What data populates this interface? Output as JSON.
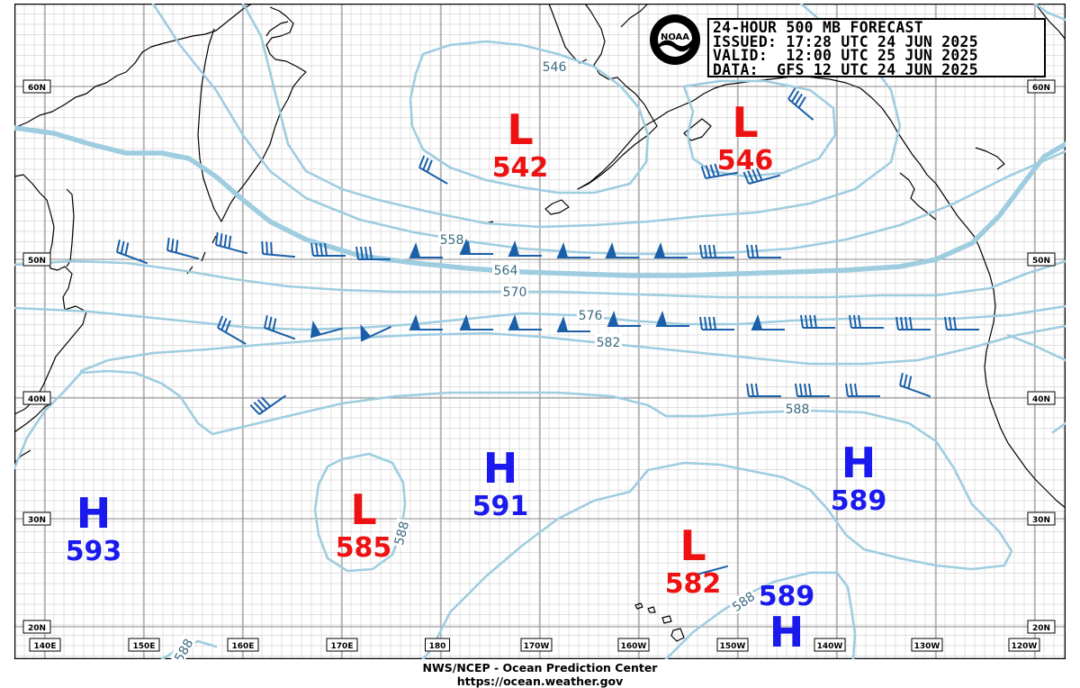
{
  "header": {
    "line1": "24-HOUR 500 MB FORECAST",
    "line2": "ISSUED: 17:28 UTC 24 JUN 2025",
    "line3": "VALID:  12:00 UTC 25 JUN 2025",
    "line4": "DATA:  GFS 12 UTC 24 JUN 2025"
  },
  "logo": {
    "icon": "noaa-logo",
    "text": "NOAA"
  },
  "footer": {
    "line1": "NWS/NCEP - Ocean Prediction Center",
    "line2": "https://ocean.weather.gov"
  },
  "colors": {
    "low": "#ee1111",
    "high": "#1a1aee",
    "contour": "#9fcde0",
    "barb": "#1a5fa8"
  },
  "lat_labels": [
    "60N",
    "50N",
    "40N",
    "30N",
    "20N"
  ],
  "lon_labels": [
    "140E",
    "150E",
    "160E",
    "170E",
    "180",
    "170W",
    "160W",
    "150W",
    "140W",
    "130W",
    "120W"
  ],
  "contour_labels": [
    "546",
    "558",
    "564",
    "570",
    "576",
    "582",
    "588",
    "588",
    "588",
    "588"
  ],
  "pressure_centers": [
    {
      "type": "L",
      "value": "542"
    },
    {
      "type": "L",
      "value": "546"
    },
    {
      "type": "H",
      "value": "593"
    },
    {
      "type": "L",
      "value": "585"
    },
    {
      "type": "H",
      "value": "591"
    },
    {
      "type": "H",
      "value": "589"
    },
    {
      "type": "L",
      "value": "582"
    },
    {
      "type": "H",
      "value": "589"
    }
  ]
}
